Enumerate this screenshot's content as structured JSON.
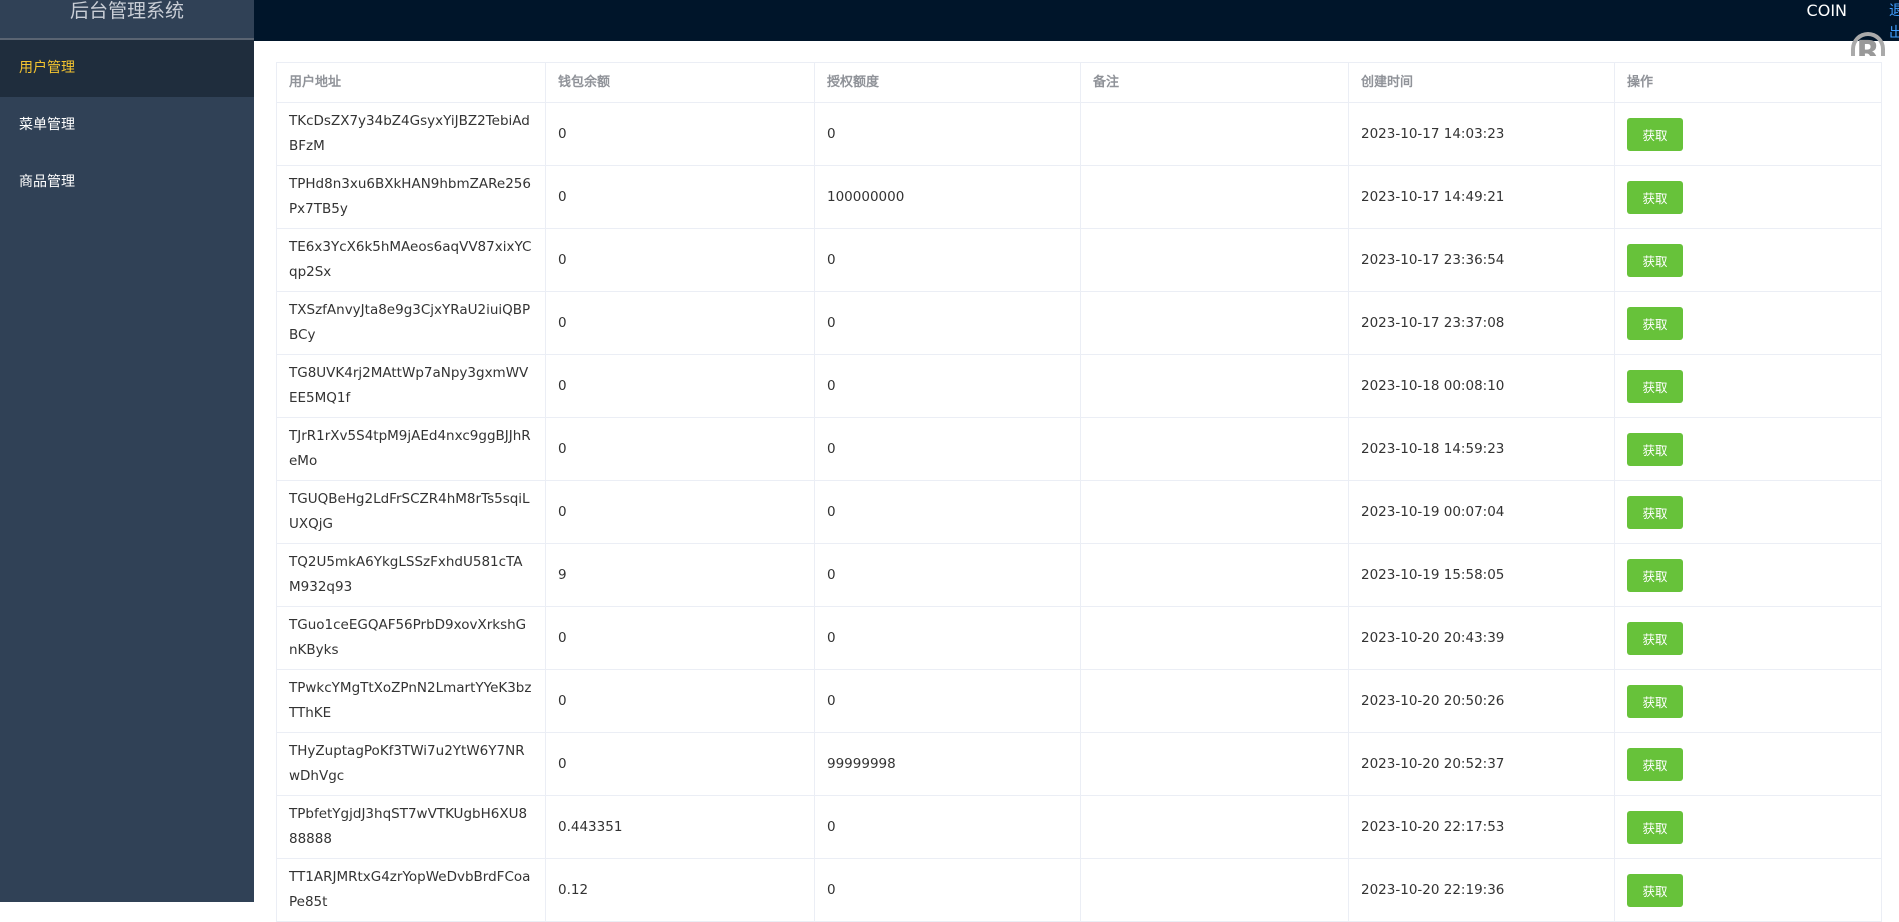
{
  "sidebar": {
    "title": "后台管理系统",
    "items": [
      {
        "label": "用户管理",
        "active": true
      },
      {
        "label": "菜单管理"
      },
      {
        "label": "商品管理"
      }
    ]
  },
  "header": {
    "user": "COIN",
    "logout": "退出"
  },
  "colors": {
    "sidebar": "#304156",
    "topbar": "#00152a",
    "active": "#f4c430",
    "button": "#67c23a"
  },
  "table": {
    "columns": [
      "用户地址",
      "钱包余额",
      "授权额度",
      "备注",
      "创建时间",
      "操作"
    ],
    "rows": [
      {
        "address": "TKcDsZX7y34bZ4GsyxYiJBZ2TebiAdBFzM",
        "balance": "0",
        "allowance": "0",
        "remark": "",
        "created": "2023-10-17 14:03:23",
        "action": "获取"
      },
      {
        "address": "TPHd8n3xu6BXkHAN9hbmZARe256Px7TB5y",
        "balance": "0",
        "allowance": "100000000",
        "remark": "",
        "created": "2023-10-17 14:49:21",
        "action": "获取"
      },
      {
        "address": "TE6x3YcX6k5hMAeos6aqVV87xixYCqp2Sx",
        "balance": "0",
        "allowance": "0",
        "remark": "",
        "created": "2023-10-17 23:36:54",
        "action": "获取"
      },
      {
        "address": "TXSzfAnvyJta8e9g3CjxYRaU2iuiQBPBCy",
        "balance": "0",
        "allowance": "0",
        "remark": "",
        "created": "2023-10-17 23:37:08",
        "action": "获取"
      },
      {
        "address": "TG8UVK4rj2MAttWp7aNpy3gxmWVEE5MQ1f",
        "balance": "0",
        "allowance": "0",
        "remark": "",
        "created": "2023-10-18 00:08:10",
        "action": "获取"
      },
      {
        "address": "TJrR1rXv5S4tpM9jAEd4nxc9ggBJJhReMo",
        "balance": "0",
        "allowance": "0",
        "remark": "",
        "created": "2023-10-18 14:59:23",
        "action": "获取"
      },
      {
        "address": "TGUQBeHg2LdFrSCZR4hM8rTs5sqiLUXQjG",
        "balance": "0",
        "allowance": "0",
        "remark": "",
        "created": "2023-10-19 00:07:04",
        "action": "获取"
      },
      {
        "address": "TQ2U5mkA6YkgLSSzFxhdU581cTAM932q93",
        "balance": "9",
        "allowance": "0",
        "remark": "",
        "created": "2023-10-19 15:58:05",
        "action": "获取"
      },
      {
        "address": "TGuo1ceEGQAF56PrbD9xovXrkshGnKByks",
        "balance": "0",
        "allowance": "0",
        "remark": "",
        "created": "2023-10-20 20:43:39",
        "action": "获取"
      },
      {
        "address": "TPwkcYMgTtXoZPnN2LmartYYeK3bzTThKE",
        "balance": "0",
        "allowance": "0",
        "remark": "",
        "created": "2023-10-20 20:50:26",
        "action": "获取"
      },
      {
        "address": "THyZuptagPoKf3TWi7u2YtW6Y7NRwDhVgc",
        "balance": "0",
        "allowance": "99999998",
        "remark": "",
        "created": "2023-10-20 20:52:37",
        "action": "获取"
      },
      {
        "address": "TPbfetYgjdJ3hqST7wVTKUgbH6XU888888",
        "balance": "0.443351",
        "allowance": "0",
        "remark": "",
        "created": "2023-10-20 22:17:53",
        "action": "获取"
      },
      {
        "address": "TT1ARJMRtxG4zrYopWeDvbBrdFCoaPe85t",
        "balance": "0.12",
        "allowance": "0",
        "remark": "",
        "created": "2023-10-20 22:19:36",
        "action": "获取"
      }
    ]
  }
}
